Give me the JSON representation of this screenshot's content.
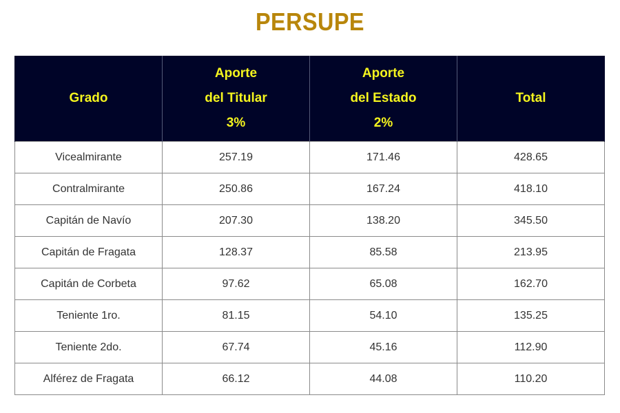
{
  "title": "PERSUPE",
  "colors": {
    "title": "#b8860b",
    "header_background": "#000428",
    "header_text": "#f5f51e",
    "cell_text": "#333333",
    "border": "#8a8a8a"
  },
  "table": {
    "headers": [
      {
        "lines": [
          "Grado"
        ]
      },
      {
        "lines": [
          "Aporte",
          "del Titular",
          "3%"
        ]
      },
      {
        "lines": [
          "Aporte",
          "del Estado",
          "2%"
        ]
      },
      {
        "lines": [
          "Total"
        ]
      }
    ],
    "rows": [
      [
        "Vicealmirante",
        "257.19",
        "171.46",
        "428.65"
      ],
      [
        "Contralmirante",
        "250.86",
        "167.24",
        "418.10"
      ],
      [
        "Capitán de Navío",
        "207.30",
        "138.20",
        "345.50"
      ],
      [
        "Capitán de Fragata",
        "128.37",
        "85.58",
        "213.95"
      ],
      [
        "Capitán de Corbeta",
        "97.62",
        "65.08",
        "162.70"
      ],
      [
        "Teniente 1ro.",
        "81.15",
        "54.10",
        "135.25"
      ],
      [
        "Teniente 2do.",
        "67.74",
        "45.16",
        "112.90"
      ],
      [
        "Alférez de Fragata",
        "66.12",
        "44.08",
        "110.20"
      ]
    ]
  }
}
